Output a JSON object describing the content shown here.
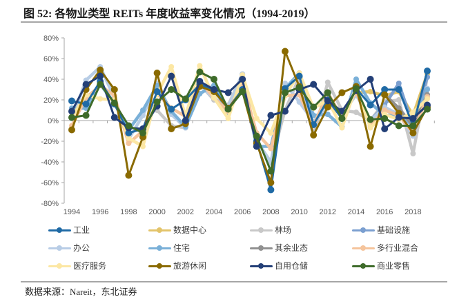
{
  "figure": {
    "title": "图  52:  各物业类型 REITs 年度收益率变化情况（1994-2019）",
    "source": "数据来源：Nareit，东北证券"
  },
  "chart_data": {
    "type": "line",
    "title": "各物业类型 REITs 年度收益率变化情况（1994-2019）",
    "xlabel": "",
    "ylabel": "",
    "x": [
      1994,
      1995,
      1996,
      1997,
      1998,
      1999,
      2000,
      2001,
      2002,
      2003,
      2004,
      2005,
      2006,
      2007,
      2008,
      2009,
      2010,
      2011,
      2012,
      2013,
      2014,
      2015,
      2016,
      2017,
      2018,
      2019
    ],
    "x_tick_labels": [
      "1994",
      "1996",
      "1998",
      "2000",
      "2002",
      "2004",
      "2006",
      "2008",
      "2010",
      "2012",
      "2014",
      "2016",
      "2018"
    ],
    "y_tick_labels": [
      "80%",
      "60%",
      "40%",
      "20%",
      "0%",
      "-20%",
      "-40%",
      "-60%",
      "-80%"
    ],
    "ylim": [
      -80,
      80
    ],
    "y_unit": "%",
    "grid": false,
    "legend_position": "bottom",
    "series": [
      {
        "name": "工业",
        "color": "#1f6aa5",
        "values": [
          19,
          16,
          38,
          16,
          -12,
          -8,
          28,
          11,
          20,
          35,
          30,
          12,
          30,
          -20,
          -67,
          31,
          43,
          -4,
          20,
          2,
          31,
          15,
          30,
          30,
          -5,
          48
        ]
      },
      {
        "name": "数据中心",
        "color": "#e3c46a",
        "values": [
          null,
          null,
          null,
          null,
          null,
          null,
          null,
          null,
          null,
          null,
          null,
          null,
          null,
          null,
          null,
          null,
          null,
          null,
          null,
          null,
          27,
          28,
          24,
          28,
          5,
          45
        ]
      },
      {
        "name": "林场",
        "color": "#c8c8c8",
        "values": [
          null,
          null,
          null,
          null,
          null,
          null,
          10,
          -5,
          -7,
          35,
          20,
          15,
          45,
          -20,
          -40,
          10,
          42,
          -15,
          37,
          10,
          8,
          0,
          18,
          20,
          -32,
          42
        ]
      },
      {
        "name": "基础设施",
        "color": "#7b9fd0",
        "values": [
          null,
          null,
          null,
          null,
          null,
          null,
          null,
          null,
          null,
          null,
          null,
          null,
          null,
          null,
          null,
          null,
          null,
          null,
          null,
          null,
          null,
          0,
          15,
          36,
          -5,
          42
        ]
      },
      {
        "name": "办公",
        "color": "#b8cde6",
        "values": [
          2,
          39,
          52,
          22,
          -18,
          5,
          36,
          6,
          -7,
          34,
          22,
          13,
          45,
          -19,
          -41,
          36,
          18,
          -1,
          14,
          6,
          25,
          0,
          13,
          6,
          -15,
          31
        ]
      },
      {
        "name": "住宅",
        "color": "#7ab0d8",
        "values": [
          12,
          12,
          35,
          17,
          -9,
          10,
          34,
          9,
          -6,
          26,
          34,
          6,
          40,
          -25,
          -25,
          31,
          46,
          5,
          6,
          -6,
          40,
          17,
          5,
          6,
          -5,
          30
        ]
      },
      {
        "name": "其余业态",
        "color": "#919191",
        "values": [
          null,
          null,
          null,
          null,
          null,
          null,
          null,
          null,
          null,
          null,
          null,
          null,
          null,
          null,
          null,
          null,
          null,
          null,
          null,
          null,
          null,
          null,
          25,
          12,
          -5,
          25
        ]
      },
      {
        "name": "多行业混合",
        "color": "#f5c49c",
        "values": [
          -5,
          22,
          34,
          24,
          -22,
          -10,
          26,
          12,
          4,
          38,
          22,
          9,
          37,
          -12,
          -27,
          24,
          25,
          -5,
          27,
          3,
          28,
          -5,
          10,
          5,
          -12,
          23
        ]
      },
      {
        "name": "医疗服务",
        "color": "#fce7a4",
        "values": [
          3,
          25,
          21,
          20,
          -17,
          -25,
          26,
          52,
          4,
          53,
          22,
          2,
          44,
          2,
          -12,
          24,
          46,
          12,
          20,
          -7,
          33,
          -7,
          6,
          1,
          8,
          21
        ]
      },
      {
        "name": "旅游休闲",
        "color": "#8a6a00",
        "values": [
          -9,
          30,
          49,
          30,
          -53,
          -16,
          46,
          -8,
          -3,
          33,
          28,
          12,
          28,
          -22,
          -60,
          67,
          33,
          -14,
          13,
          27,
          33,
          -25,
          25,
          7,
          -12,
          13
        ]
      },
      {
        "name": "自用仓储",
        "color": "#233f77",
        "values": [
          9,
          35,
          43,
          3,
          -7,
          -8,
          14,
          43,
          0,
          38,
          30,
          27,
          40,
          -25,
          5,
          9,
          30,
          35,
          19,
          9,
          29,
          40,
          -8,
          3,
          2,
          15
        ]
      },
      {
        "name": "商业零售",
        "color": "#3e6b2a",
        "values": [
          3,
          5,
          35,
          17,
          -5,
          -12,
          18,
          30,
          21,
          47,
          40,
          11,
          28,
          -15,
          -49,
          27,
          32,
          13,
          27,
          2,
          31,
          1,
          2,
          -5,
          -5,
          11
        ]
      }
    ]
  }
}
